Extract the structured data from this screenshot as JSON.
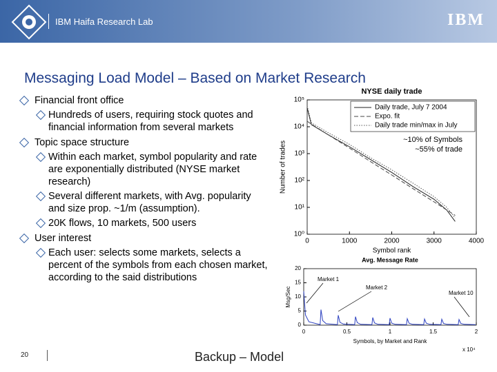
{
  "header": {
    "lab": "IBM Haifa Research Lab",
    "logo": "IBM"
  },
  "title": "Messaging Load Model – Based on Market Research",
  "bullets": [
    {
      "text": "Financial front office",
      "sub": [
        "Hundreds of users, requiring stock quotes and financial information from several markets"
      ]
    },
    {
      "text": "Topic space structure",
      "sub": [
        "Within each market, symbol popularity and rate are exponentially distributed (NYSE market research)",
        "Several different markets, with Avg. popularity and size prop. ~1/m   (assumption).",
        "20K flows, 10 markets, 500 users"
      ]
    },
    {
      "text": "User interest",
      "sub": [
        "Each user: selects some markets, selects a percent of the symbols from each chosen market, according to the said distributions"
      ]
    }
  ],
  "footer": {
    "page": "20",
    "section": "Backup – Model"
  },
  "chart_data": [
    {
      "type": "line",
      "title": "NYSE daily trade",
      "xlabel": "Symbol rank",
      "ylabel": "Number of trades",
      "log_y": true,
      "legend": "upper right",
      "x": [
        0,
        100,
        500,
        1000,
        1500,
        2000,
        2500,
        3000,
        3300,
        3500
      ],
      "xlim": [
        0,
        4000
      ],
      "xticks": [
        0,
        1000,
        2000,
        3000,
        4000
      ],
      "ylim": [
        1,
        100000
      ],
      "yticks": [
        {
          "value": 1,
          "label": "10⁰"
        },
        {
          "value": 10,
          "label": "10¹"
        },
        {
          "value": 100,
          "label": "10²"
        },
        {
          "value": 1000,
          "label": "10³"
        },
        {
          "value": 10000,
          "label": "10⁴"
        },
        {
          "value": 100000,
          "label": "10⁵"
        }
      ],
      "series": [
        {
          "name": "Daily trade, July 7 2004",
          "color": "#222222",
          "style": "solid",
          "values": [
            50000,
            12000,
            5000,
            1800,
            600,
            200,
            60,
            20,
            8,
            3
          ]
        },
        {
          "name": "Expo. fit",
          "color": "#444444",
          "style": "dashed",
          "values": [
            16000,
            12500,
            5000,
            1600,
            500,
            160,
            50,
            16,
            8,
            5
          ]
        },
        {
          "name": "Daily trade min/max in July",
          "color": "#555555",
          "style": "dotted",
          "values": [
            60000,
            14000,
            6000,
            2200,
            700,
            250,
            80,
            25,
            10,
            4
          ]
        }
      ],
      "annotations": [
        "~10% of Symbols",
        "~55% of trade"
      ]
    },
    {
      "type": "line",
      "title": "Avg. Message Rate",
      "xlabel": "Symbols, by Market and Rank",
      "ylabel": "Msg/Sec",
      "x_multiplier": "x 10⁴",
      "x": [
        0,
        0.02,
        0.06,
        0.19,
        0.2,
        0.22,
        0.26,
        0.39,
        0.4,
        0.42,
        0.46,
        0.59,
        0.6,
        0.62,
        0.66,
        0.79,
        0.8,
        0.82,
        0.86,
        0.99,
        1.0,
        1.02,
        1.06,
        1.19,
        1.2,
        1.22,
        1.26,
        1.39,
        1.4,
        1.42,
        1.46,
        1.59,
        1.6,
        1.62,
        1.66,
        1.79,
        1.8,
        1.82,
        1.86,
        1.99
      ],
      "xlim": [
        0,
        2
      ],
      "xticks": [
        0,
        0.5,
        1,
        1.5,
        2
      ],
      "ylim": [
        0,
        20
      ],
      "yticks": [
        0,
        5,
        10,
        15,
        20
      ],
      "series": [
        {
          "name": "Avg. Message Rate",
          "color": "#2a3fbf",
          "style": "solid",
          "values": [
            12,
            3.6,
            1.2,
            0.2,
            5.5,
            1.6,
            0.5,
            0.2,
            3.5,
            1,
            0.4,
            0.2,
            3,
            0.9,
            0.3,
            0.2,
            2.7,
            0.8,
            0.3,
            0.2,
            2.5,
            0.7,
            0.3,
            0.2,
            2.3,
            0.7,
            0.3,
            0.2,
            2.2,
            0.7,
            0.3,
            0.2,
            2.1,
            0.6,
            0.3,
            0.2,
            2,
            0.6,
            0.3,
            0.2
          ]
        }
      ],
      "annotations": [
        "Market 1",
        "Market 2",
        "Market 10"
      ]
    }
  ]
}
